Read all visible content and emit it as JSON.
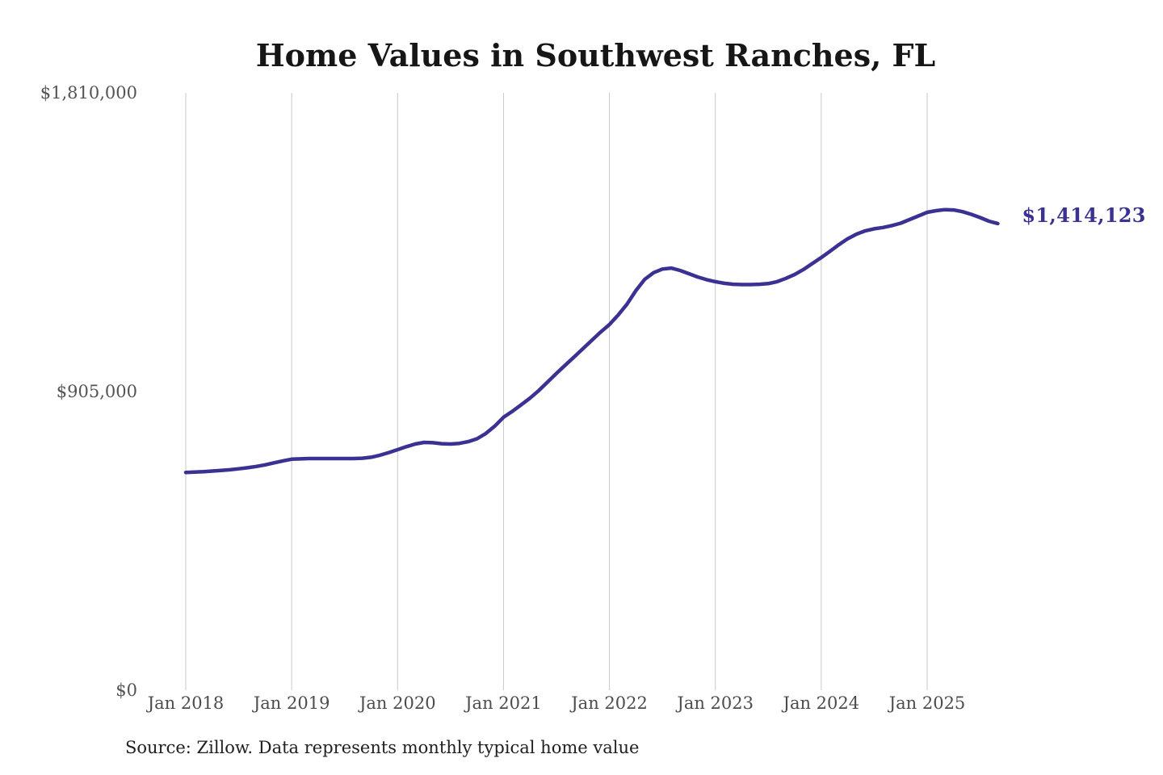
{
  "chart_data": {
    "type": "line",
    "title": "Home Values in Southwest Ranches, FL",
    "xlabel": "",
    "ylabel": "",
    "ylim": [
      0,
      1810000
    ],
    "grid": "vertical-only",
    "legend": "none",
    "line_color": "#3a3193",
    "gridline_color": "#c9c9c9",
    "y_ticks": [
      {
        "value": 0,
        "label": "$0"
      },
      {
        "value": 905000,
        "label": "$905,000"
      },
      {
        "value": 1810000,
        "label": "$1,810,000"
      }
    ],
    "x_ticks": [
      {
        "month_index": 0,
        "label": "Jan 2018"
      },
      {
        "month_index": 12,
        "label": "Jan 2019"
      },
      {
        "month_index": 24,
        "label": "Jan 2020"
      },
      {
        "month_index": 36,
        "label": "Jan 2021"
      },
      {
        "month_index": 48,
        "label": "Jan 2022"
      },
      {
        "month_index": 60,
        "label": "Jan 2023"
      },
      {
        "month_index": 72,
        "label": "Jan 2024"
      },
      {
        "month_index": 84,
        "label": "Jan 2025"
      }
    ],
    "series_name": "Monthly typical home value",
    "months": [
      "Jan 2018",
      "Feb 2018",
      "Mar 2018",
      "Apr 2018",
      "May 2018",
      "Jun 2018",
      "Jul 2018",
      "Aug 2018",
      "Sep 2018",
      "Oct 2018",
      "Nov 2018",
      "Dec 2018",
      "Jan 2019",
      "Feb 2019",
      "Mar 2019",
      "Apr 2019",
      "May 2019",
      "Jun 2019",
      "Jul 2019",
      "Aug 2019",
      "Sep 2019",
      "Oct 2019",
      "Nov 2019",
      "Dec 2019",
      "Jan 2020",
      "Feb 2020",
      "Mar 2020",
      "Apr 2020",
      "May 2020",
      "Jun 2020",
      "Jul 2020",
      "Aug 2020",
      "Sep 2020",
      "Oct 2020",
      "Nov 2020",
      "Dec 2020",
      "Jan 2021",
      "Feb 2021",
      "Mar 2021",
      "Apr 2021",
      "May 2021",
      "Jun 2021",
      "Jul 2021",
      "Aug 2021",
      "Sep 2021",
      "Oct 2021",
      "Nov 2021",
      "Dec 2021",
      "Jan 2022",
      "Feb 2022",
      "Mar 2022",
      "Apr 2022",
      "May 2022",
      "Jun 2022",
      "Jul 2022",
      "Aug 2022",
      "Sep 2022",
      "Oct 2022",
      "Nov 2022",
      "Dec 2022",
      "Jan 2023",
      "Feb 2023",
      "Mar 2023",
      "Apr 2023",
      "May 2023",
      "Jun 2023",
      "Jul 2023",
      "Aug 2023",
      "Sep 2023",
      "Oct 2023",
      "Nov 2023",
      "Dec 2023",
      "Jan 2024",
      "Feb 2024",
      "Mar 2024",
      "Apr 2024",
      "May 2024",
      "Jun 2024",
      "Jul 2024",
      "Aug 2024",
      "Sep 2024",
      "Oct 2024",
      "Nov 2024",
      "Dec 2024",
      "Jan 2025",
      "Feb 2025",
      "Mar 2025",
      "Apr 2025",
      "May 2025",
      "Jun 2025",
      "Jul 2025",
      "Aug 2025",
      "Sep 2025"
    ],
    "values": [
      660000,
      661000,
      662000,
      664000,
      666000,
      668000,
      671000,
      674000,
      678000,
      683000,
      689000,
      695000,
      700000,
      701000,
      702000,
      702000,
      702000,
      702000,
      702000,
      702000,
      703000,
      706000,
      712000,
      720000,
      729000,
      738000,
      746000,
      751000,
      750000,
      747000,
      746000,
      748000,
      753000,
      762000,
      778000,
      800000,
      827000,
      845000,
      865000,
      885000,
      908000,
      934000,
      960000,
      985000,
      1010000,
      1035000,
      1060000,
      1085000,
      1108000,
      1137000,
      1170000,
      1211000,
      1245000,
      1265000,
      1276000,
      1279000,
      1272000,
      1262000,
      1252000,
      1244000,
      1238000,
      1233000,
      1230000,
      1229000,
      1229000,
      1230000,
      1232000,
      1238000,
      1248000,
      1260000,
      1275000,
      1293000,
      1311000,
      1330000,
      1350000,
      1368000,
      1382000,
      1392000,
      1398000,
      1402000,
      1408000,
      1415000,
      1426000,
      1437000,
      1448000,
      1453000,
      1456000,
      1455000,
      1450000,
      1442000,
      1432000,
      1421000,
      1414123
    ],
    "last_value": 1414123,
    "last_point_label": "$1,414,123",
    "source_note": "Source: Zillow. Data represents monthly typical home value"
  }
}
